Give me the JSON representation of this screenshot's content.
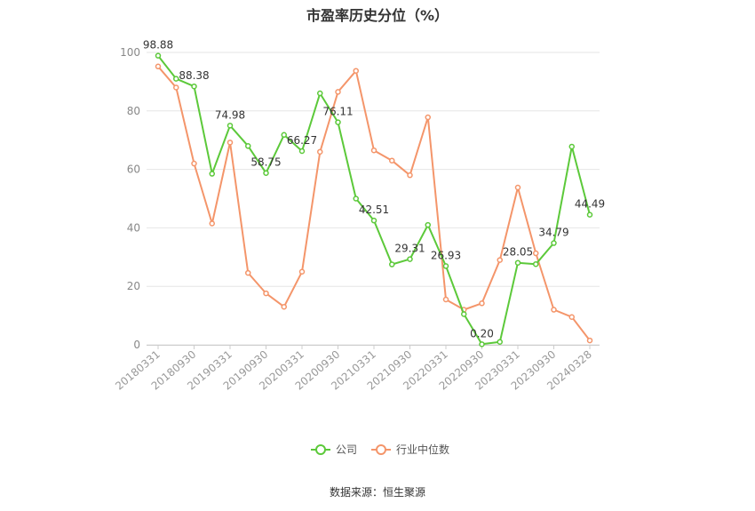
{
  "chart_data": {
    "type": "line",
    "title": "市盈率历史分位（%）",
    "source": "数据来源：恒生聚源",
    "ylim": [
      0,
      100
    ],
    "yticks": [
      0,
      20,
      40,
      60,
      80,
      100
    ],
    "grid": true,
    "legend_position": "bottom",
    "x": [
      "20180331",
      "20180630",
      "20180930",
      "20181231",
      "20190331",
      "20190630",
      "20190930",
      "20191231",
      "20200331",
      "20200630",
      "20200930",
      "20201231",
      "20210331",
      "20210630",
      "20210930",
      "20211231",
      "20220331",
      "20220630",
      "20220930",
      "20221231",
      "20230331",
      "20230630",
      "20230930",
      "20231231",
      "20240328"
    ],
    "xticks": [
      "20180331",
      "20180930",
      "20190331",
      "20190930",
      "20200331",
      "20200930",
      "20210331",
      "20210930",
      "20220331",
      "20220930",
      "20230331",
      "20230930",
      "20240328"
    ],
    "series": [
      {
        "name": "公司",
        "color": "#5cc93a",
        "values": [
          98.88,
          91.0,
          88.38,
          58.5,
          74.98,
          68.0,
          58.75,
          71.8,
          66.27,
          86.0,
          76.11,
          50.0,
          42.51,
          27.5,
          29.31,
          41.0,
          26.93,
          10.5,
          0.2,
          1.0,
          28.05,
          27.6,
          34.79,
          67.8,
          44.49
        ],
        "labels": {
          "0": "98.88",
          "2": "88.38",
          "4": "74.98",
          "6": "58.75",
          "8": "66.27",
          "10": "76.11",
          "12": "42.51",
          "14": "29.31",
          "16": "26.93",
          "18": "0.20",
          "20": "28.05",
          "22": "34.79",
          "24": "44.49"
        }
      },
      {
        "name": "行业中位数",
        "color": "#f4956a",
        "values": [
          95.2,
          88.0,
          62.0,
          41.5,
          69.2,
          24.6,
          17.6,
          13.0,
          25.0,
          66.0,
          86.5,
          93.7,
          66.5,
          63.0,
          58.0,
          77.8,
          15.5,
          12.0,
          14.2,
          29.0,
          53.8,
          31.3,
          12.0,
          9.5,
          1.5
        ]
      }
    ]
  }
}
